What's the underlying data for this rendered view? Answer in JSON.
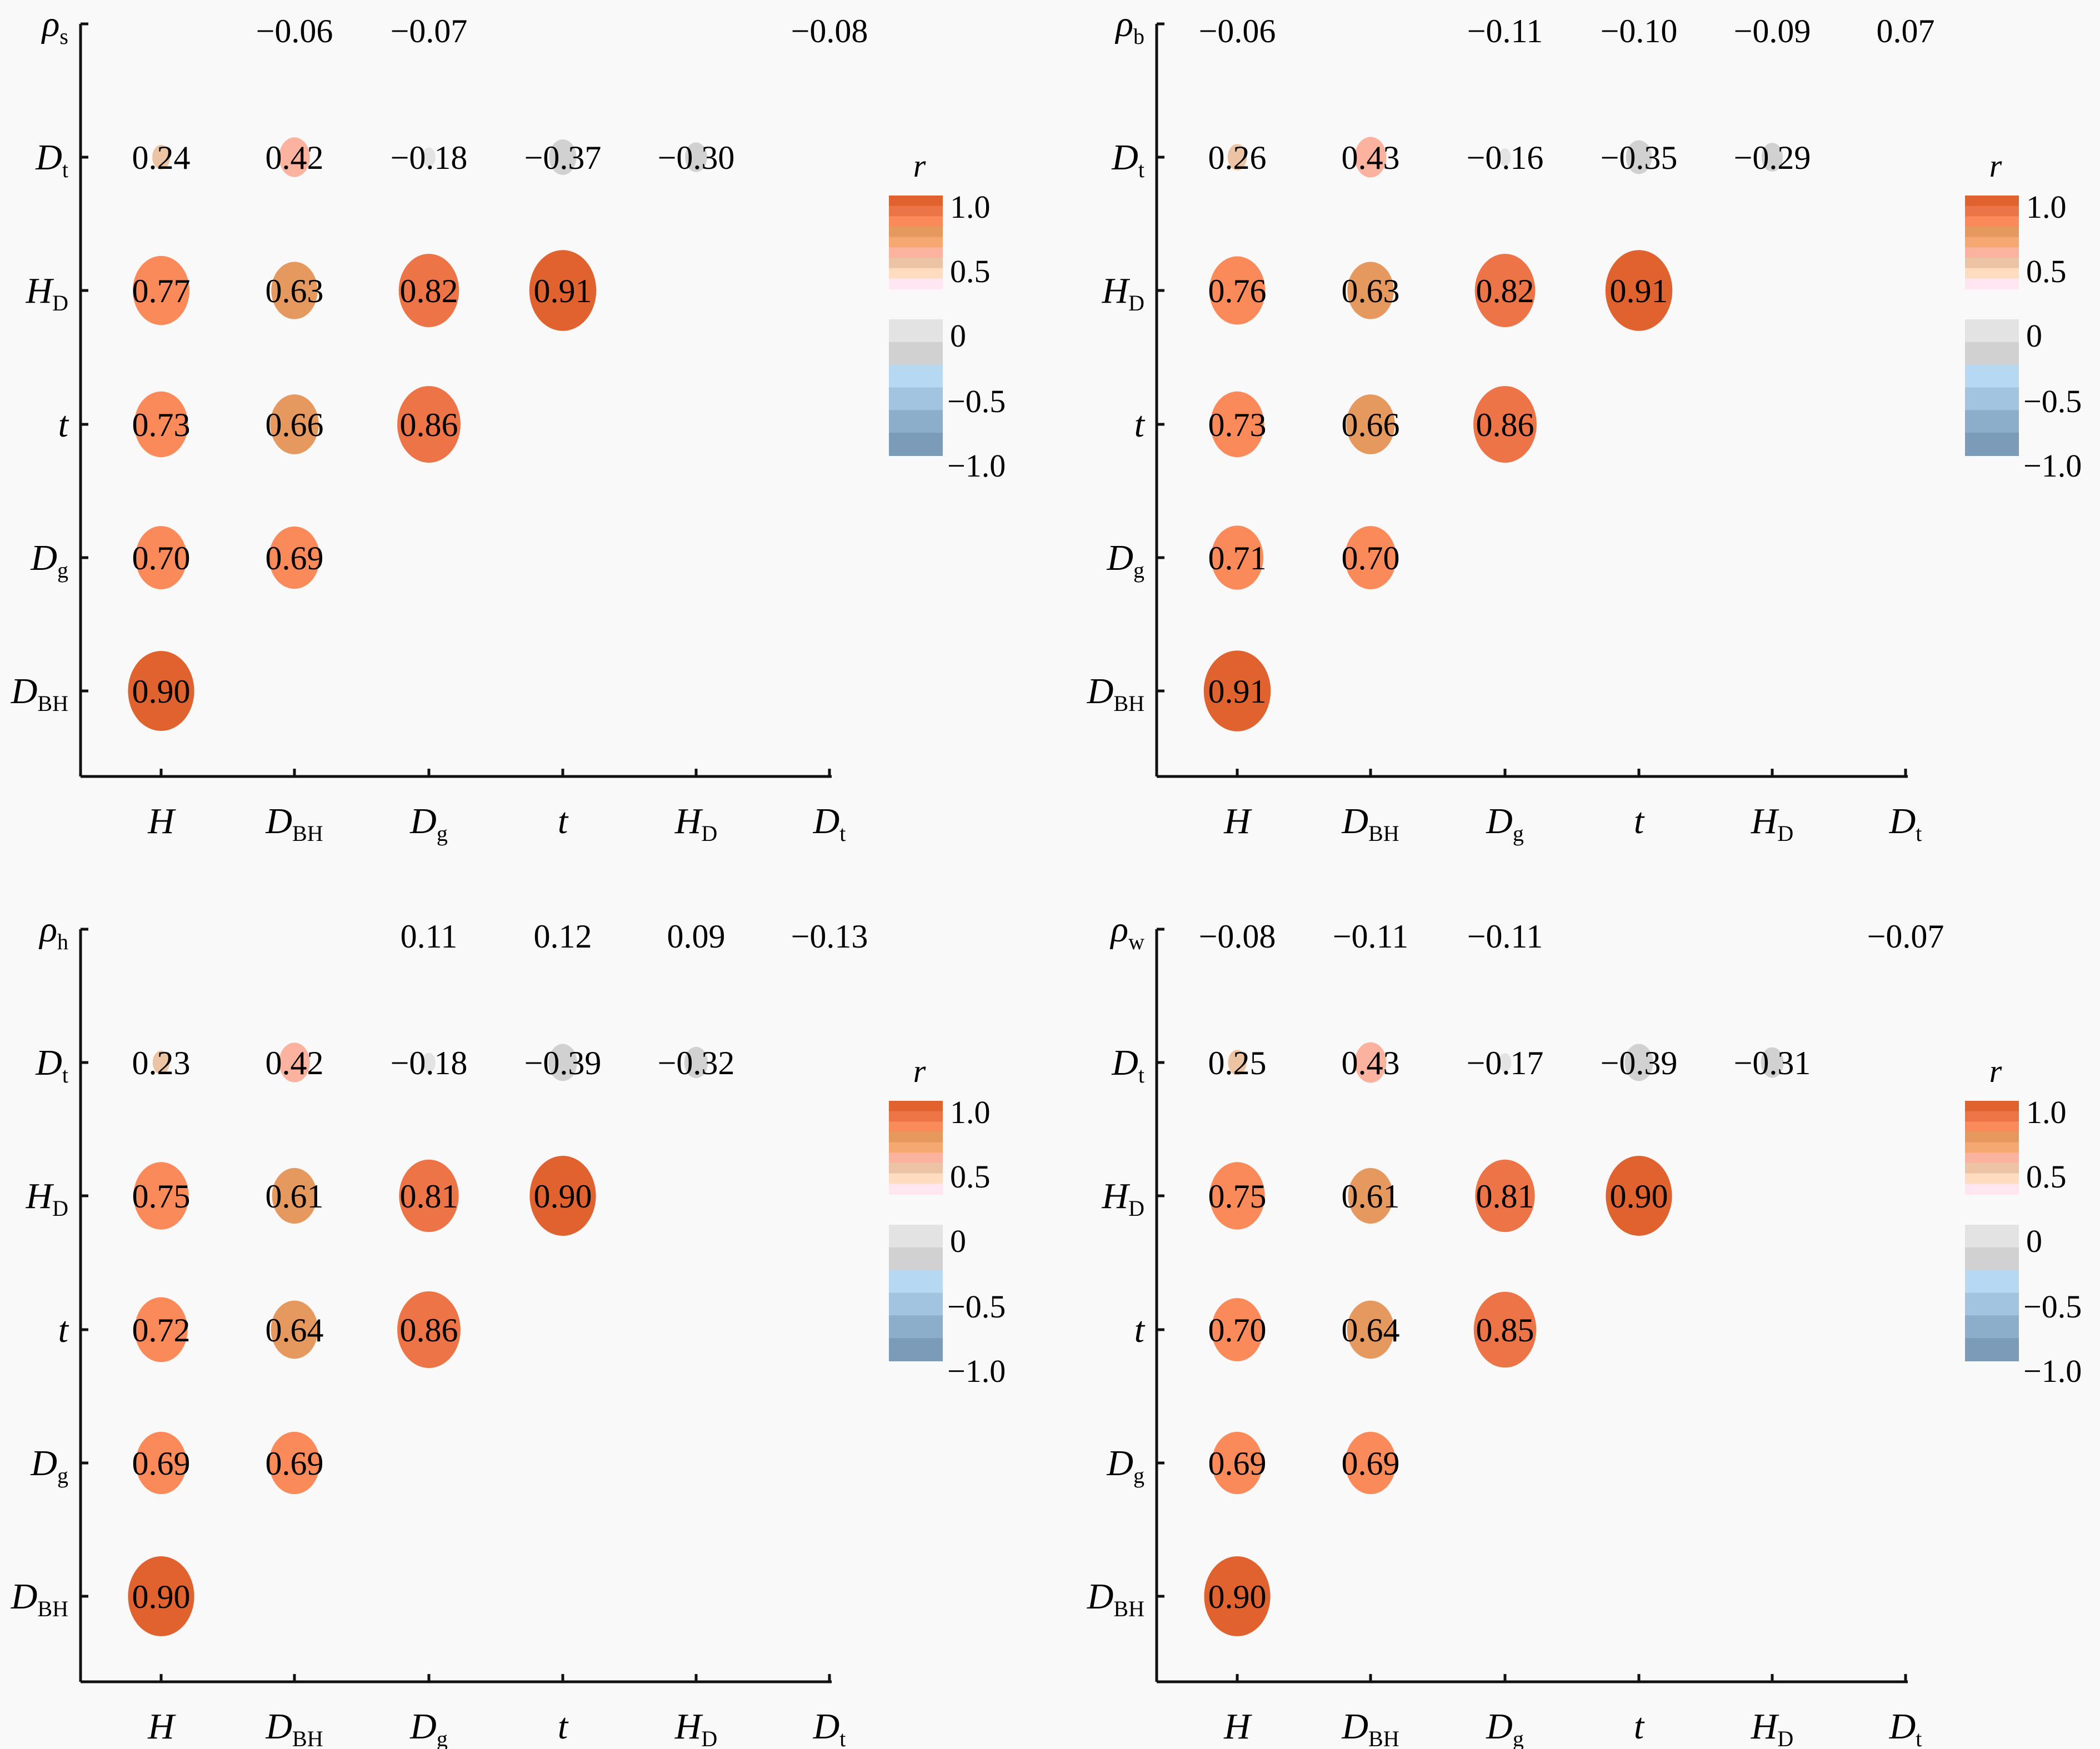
{
  "chart_data": [
    {
      "type": "heatmap",
      "subtype": "lower-triangular correlation bubble matrix",
      "panel": "top-left",
      "row_labels": [
        {
          "main": "ρ",
          "sub": "s"
        },
        {
          "main": "D",
          "sub": "t"
        },
        {
          "main": "H",
          "sub": "D"
        },
        {
          "main": "t",
          "sub": ""
        },
        {
          "main": "D",
          "sub": "g"
        },
        {
          "main": "D",
          "sub": "BH"
        }
      ],
      "col_labels": [
        {
          "main": "H",
          "sub": ""
        },
        {
          "main": "D",
          "sub": "BH"
        },
        {
          "main": "D",
          "sub": "g"
        },
        {
          "main": "t",
          "sub": ""
        },
        {
          "main": "H",
          "sub": "D"
        },
        {
          "main": "D",
          "sub": "t"
        }
      ],
      "values": [
        [
          null,
          -0.06,
          -0.07,
          null,
          null,
          -0.08
        ],
        [
          0.24,
          0.42,
          -0.18,
          -0.37,
          -0.3,
          null
        ],
        [
          0.77,
          0.63,
          0.82,
          0.91,
          null,
          null
        ],
        [
          0.73,
          0.66,
          0.86,
          null,
          null,
          null
        ],
        [
          0.7,
          0.69,
          null,
          null,
          null,
          null
        ],
        [
          0.9,
          null,
          null,
          null,
          null,
          null
        ]
      ],
      "legend": {
        "title": "r",
        "ticks": [
          "1.0",
          "0.5",
          "0",
          "−0.5",
          "−1.0"
        ],
        "range": [
          -1,
          1
        ],
        "placement": "right"
      }
    },
    {
      "type": "heatmap",
      "subtype": "lower-triangular correlation bubble matrix",
      "panel": "top-right",
      "row_labels": [
        {
          "main": "ρ",
          "sub": "b"
        },
        {
          "main": "D",
          "sub": "t"
        },
        {
          "main": "H",
          "sub": "D"
        },
        {
          "main": "t",
          "sub": ""
        },
        {
          "main": "D",
          "sub": "g"
        },
        {
          "main": "D",
          "sub": "BH"
        }
      ],
      "col_labels": [
        {
          "main": "H",
          "sub": ""
        },
        {
          "main": "D",
          "sub": "BH"
        },
        {
          "main": "D",
          "sub": "g"
        },
        {
          "main": "t",
          "sub": ""
        },
        {
          "main": "H",
          "sub": "D"
        },
        {
          "main": "D",
          "sub": "t"
        }
      ],
      "values": [
        [
          -0.06,
          null,
          -0.11,
          -0.1,
          -0.09,
          0.07
        ],
        [
          0.26,
          0.43,
          -0.16,
          -0.35,
          -0.29,
          null
        ],
        [
          0.76,
          0.63,
          0.82,
          0.91,
          null,
          null
        ],
        [
          0.73,
          0.66,
          0.86,
          null,
          null,
          null
        ],
        [
          0.71,
          0.7,
          null,
          null,
          null,
          null
        ],
        [
          0.91,
          null,
          null,
          null,
          null,
          null
        ]
      ],
      "legend": {
        "title": "r",
        "ticks": [
          "1.0",
          "0.5",
          "0",
          "−0.5",
          "−1.0"
        ],
        "range": [
          -1,
          1
        ],
        "placement": "right"
      }
    },
    {
      "type": "heatmap",
      "subtype": "lower-triangular correlation bubble matrix",
      "panel": "bottom-left",
      "row_labels": [
        {
          "main": "ρ",
          "sub": "h"
        },
        {
          "main": "D",
          "sub": "t"
        },
        {
          "main": "H",
          "sub": "D"
        },
        {
          "main": "t",
          "sub": ""
        },
        {
          "main": "D",
          "sub": "g"
        },
        {
          "main": "D",
          "sub": "BH"
        }
      ],
      "col_labels": [
        {
          "main": "H",
          "sub": ""
        },
        {
          "main": "D",
          "sub": "BH"
        },
        {
          "main": "D",
          "sub": "g"
        },
        {
          "main": "t",
          "sub": ""
        },
        {
          "main": "H",
          "sub": "D"
        },
        {
          "main": "D",
          "sub": "t"
        }
      ],
      "values": [
        [
          null,
          null,
          0.11,
          0.12,
          0.09,
          -0.13
        ],
        [
          0.23,
          0.42,
          -0.18,
          -0.39,
          -0.32,
          null
        ],
        [
          0.75,
          0.61,
          0.81,
          0.9,
          null,
          null
        ],
        [
          0.72,
          0.64,
          0.86,
          null,
          null,
          null
        ],
        [
          0.69,
          0.69,
          null,
          null,
          null,
          null
        ],
        [
          0.9,
          null,
          null,
          null,
          null,
          null
        ]
      ],
      "legend": {
        "title": "r",
        "ticks": [
          "1.0",
          "0.5",
          "0",
          "−0.5",
          "−1.0"
        ],
        "range": [
          -1,
          1
        ],
        "placement": "right"
      }
    },
    {
      "type": "heatmap",
      "subtype": "lower-triangular correlation bubble matrix",
      "panel": "bottom-right",
      "row_labels": [
        {
          "main": "ρ",
          "sub": "w"
        },
        {
          "main": "D",
          "sub": "t"
        },
        {
          "main": "H",
          "sub": "D"
        },
        {
          "main": "t",
          "sub": ""
        },
        {
          "main": "D",
          "sub": "g"
        },
        {
          "main": "D",
          "sub": "BH"
        }
      ],
      "col_labels": [
        {
          "main": "H",
          "sub": ""
        },
        {
          "main": "D",
          "sub": "BH"
        },
        {
          "main": "D",
          "sub": "g"
        },
        {
          "main": "t",
          "sub": ""
        },
        {
          "main": "H",
          "sub": "D"
        },
        {
          "main": "D",
          "sub": "t"
        }
      ],
      "values": [
        [
          -0.08,
          -0.11,
          -0.11,
          null,
          null,
          -0.07
        ],
        [
          0.25,
          0.43,
          -0.17,
          -0.39,
          -0.31,
          null
        ],
        [
          0.75,
          0.61,
          0.81,
          0.9,
          null,
          null
        ],
        [
          0.7,
          0.64,
          0.85,
          null,
          null,
          null
        ],
        [
          0.69,
          0.69,
          null,
          null,
          null,
          null
        ],
        [
          0.9,
          null,
          null,
          null,
          null,
          null
        ]
      ],
      "legend": {
        "title": "r",
        "ticks": [
          "1.0",
          "0.5",
          "0",
          "−0.5",
          "−1.0"
        ],
        "range": [
          -1,
          1
        ],
        "placement": "right"
      }
    }
  ],
  "colorscale": {
    "positive": [
      "#ffe6f0",
      "#ffdcc0",
      "#ecc4a4",
      "#fbb3a0",
      "#f6a872",
      "#e6995e",
      "#fb8a5a",
      "#ec7446",
      "#e0622f"
    ],
    "negative": [
      "#e3e3e3",
      "#d1d1d1",
      "#b6d8f2",
      "#a3c4e0",
      "#8daecb",
      "#7b9bb8"
    ]
  }
}
